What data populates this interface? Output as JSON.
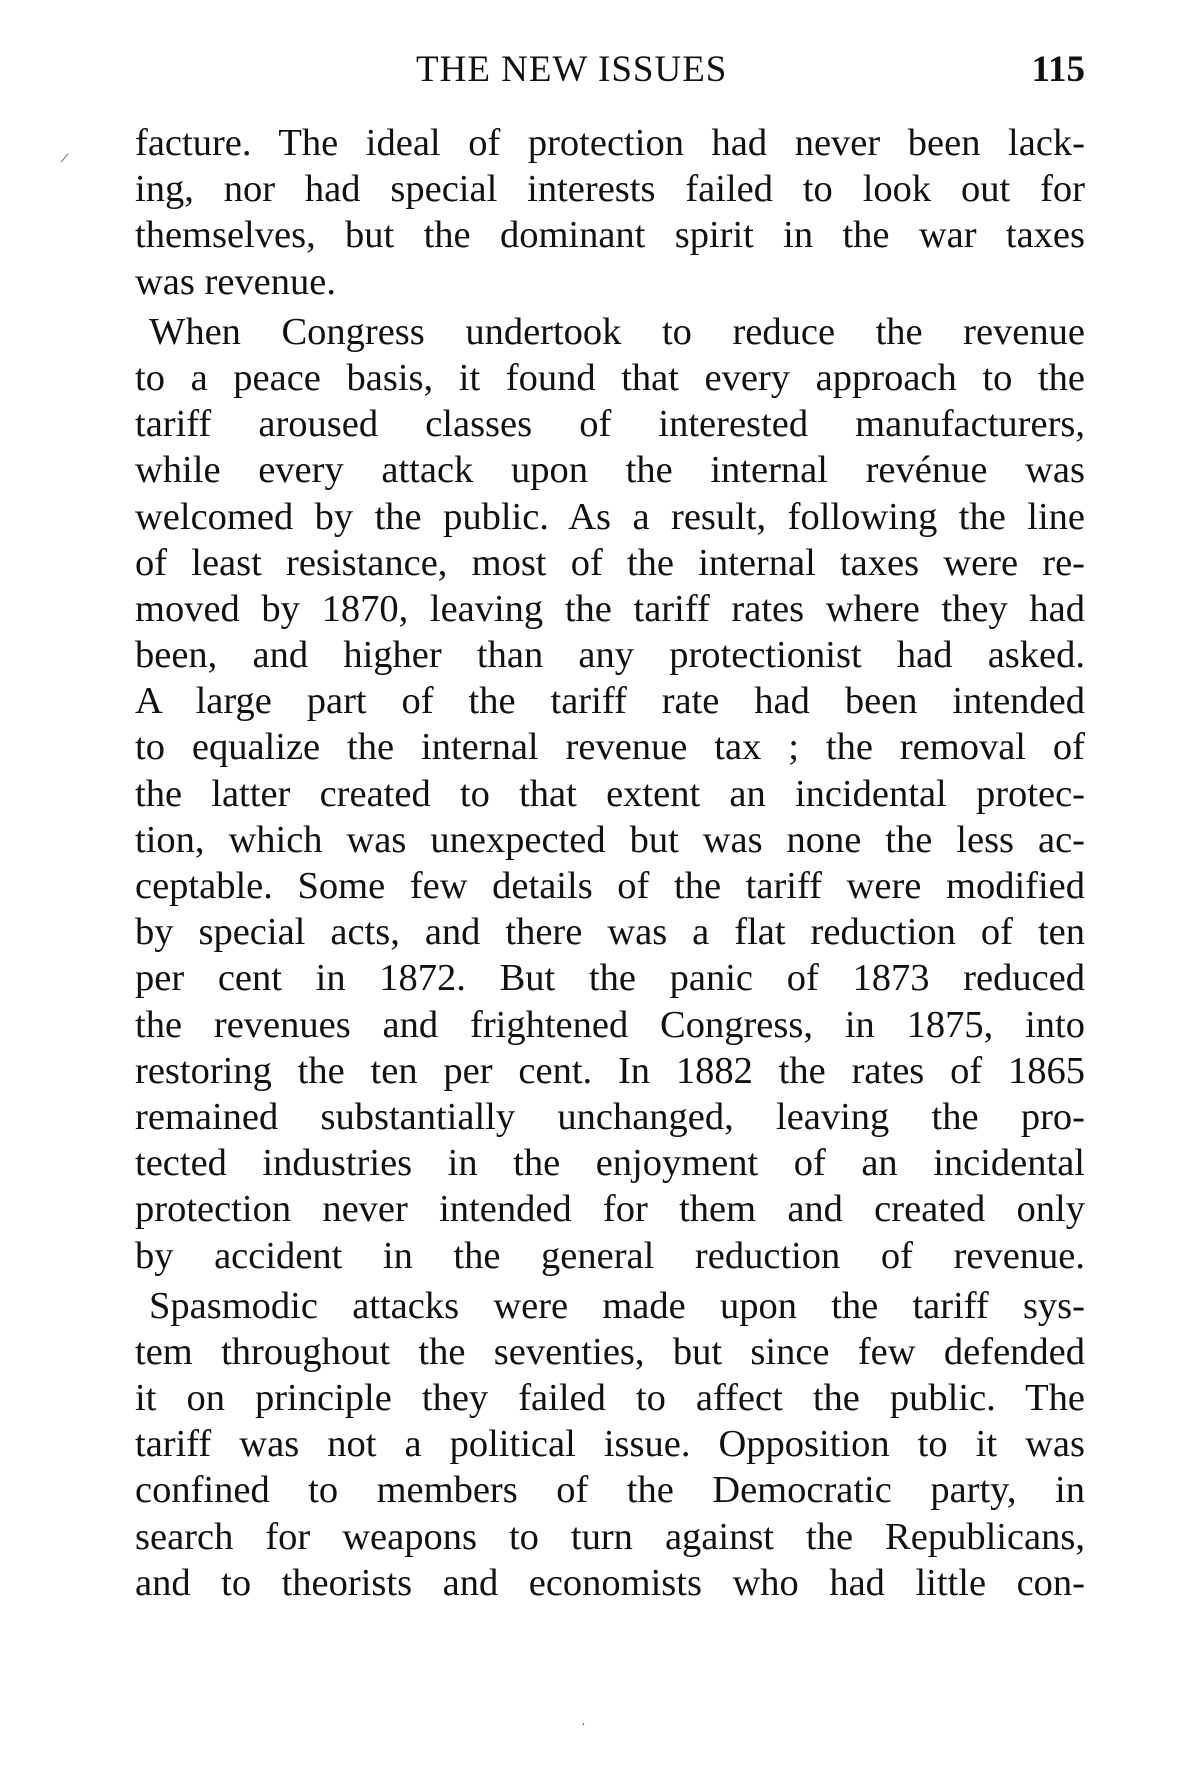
{
  "header": {
    "running_title": "THE NEW ISSUES",
    "page_number": "115"
  },
  "paragraphs": [
    {
      "continued": true,
      "last_full": false,
      "lines": [
        "facture. The ideal of protection had never been lack-",
        "ing, nor had special interests failed to look out for",
        "themselves, but the dominant spirit in the war taxes",
        "was revenue."
      ]
    },
    {
      "continued": false,
      "last_full": true,
      "lines": [
        "When Congress undertook to reduce the revenue",
        "to a peace basis, it found that every approach to the",
        "tariff aroused classes of interested manufacturers,",
        "while every attack upon the internal revénue was",
        "welcomed by the public. As a result, following the line",
        "of least resistance, most of the internal taxes were re-",
        "moved by 1870, leaving the tariff rates where they had",
        "been, and higher than any protectionist had asked.",
        "A large part of the tariff rate had been intended",
        "to equalize the internal revenue tax ; the removal of",
        "the latter created to that extent an incidental protec-",
        "tion, which was unexpected but was none the less ac-",
        "ceptable. Some few details of the tariff were modified",
        "by special acts, and there was a flat reduction of ten",
        "per cent in 1872. But the panic of 1873 reduced",
        "the revenues and frightened Congress, in 1875, into",
        "restoring the ten per cent. In 1882 the rates of 1865",
        "remained substantially unchanged, leaving the pro-",
        "tected industries in the enjoyment of an incidental",
        "protection never intended for them and created only",
        "by accident in the general reduction of revenue."
      ]
    },
    {
      "continued": false,
      "last_full": true,
      "lines": [
        "Spasmodic attacks were made upon the tariff sys-",
        "tem throughout the seventies, but since few defended",
        "it on principle they failed to affect the public. The",
        "tariff was not a political issue. Opposition to it was",
        "confined to members of the Democratic party, in",
        "search for weapons to turn against the Republicans,",
        "and to theorists and economists who had little con-"
      ]
    }
  ]
}
